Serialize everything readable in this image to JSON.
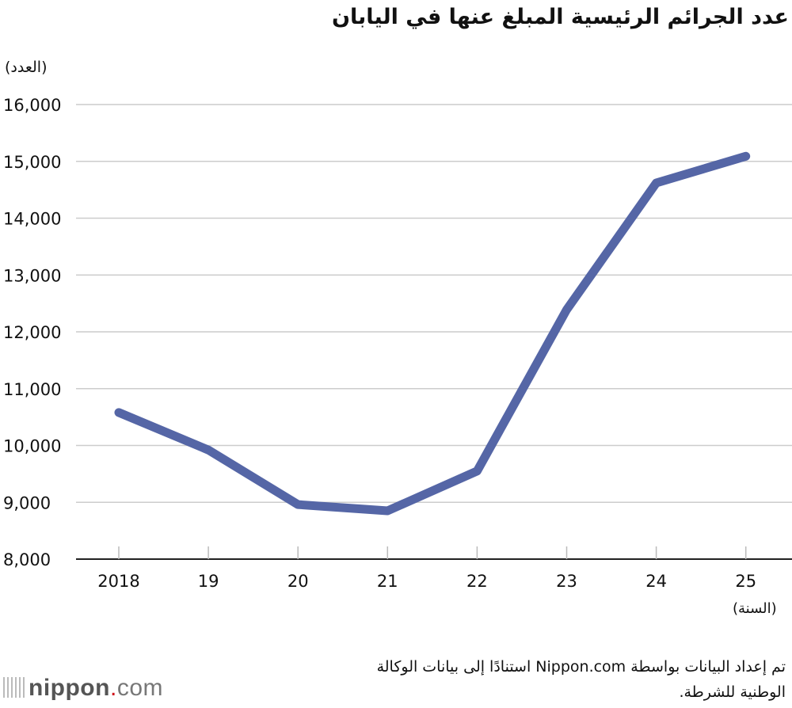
{
  "chart_data": {
    "type": "line",
    "title": "عدد الجرائم الرئيسية المبلغ عنها في اليابان",
    "ylabel": "(العدد)",
    "xlabel": "(السنة)",
    "categories": [
      "2018",
      "19",
      "20",
      "21",
      "22",
      "23",
      "24",
      "25"
    ],
    "series": [
      {
        "values": [
          10580,
          9920,
          8960,
          8850,
          9550,
          12390,
          14620,
          15090
        ],
        "color": "#5566a6"
      }
    ],
    "ylim": [
      8000,
      16000
    ],
    "yticks": [
      8000,
      9000,
      10000,
      11000,
      12000,
      13000,
      14000,
      15000,
      16000
    ],
    "ytick_labels": [
      "8,000",
      "9,000",
      "10,000",
      "11,000",
      "12,000",
      "13,000",
      "14,000",
      "15,000",
      "16,000"
    ],
    "grid": true,
    "legend": "none"
  },
  "footer": {
    "source": "تم إعداد البيانات بواسطة Nippon.com استنادًا إلى بيانات الوكالة الوطنية للشرطة.",
    "logo_text": "nippon.com"
  }
}
